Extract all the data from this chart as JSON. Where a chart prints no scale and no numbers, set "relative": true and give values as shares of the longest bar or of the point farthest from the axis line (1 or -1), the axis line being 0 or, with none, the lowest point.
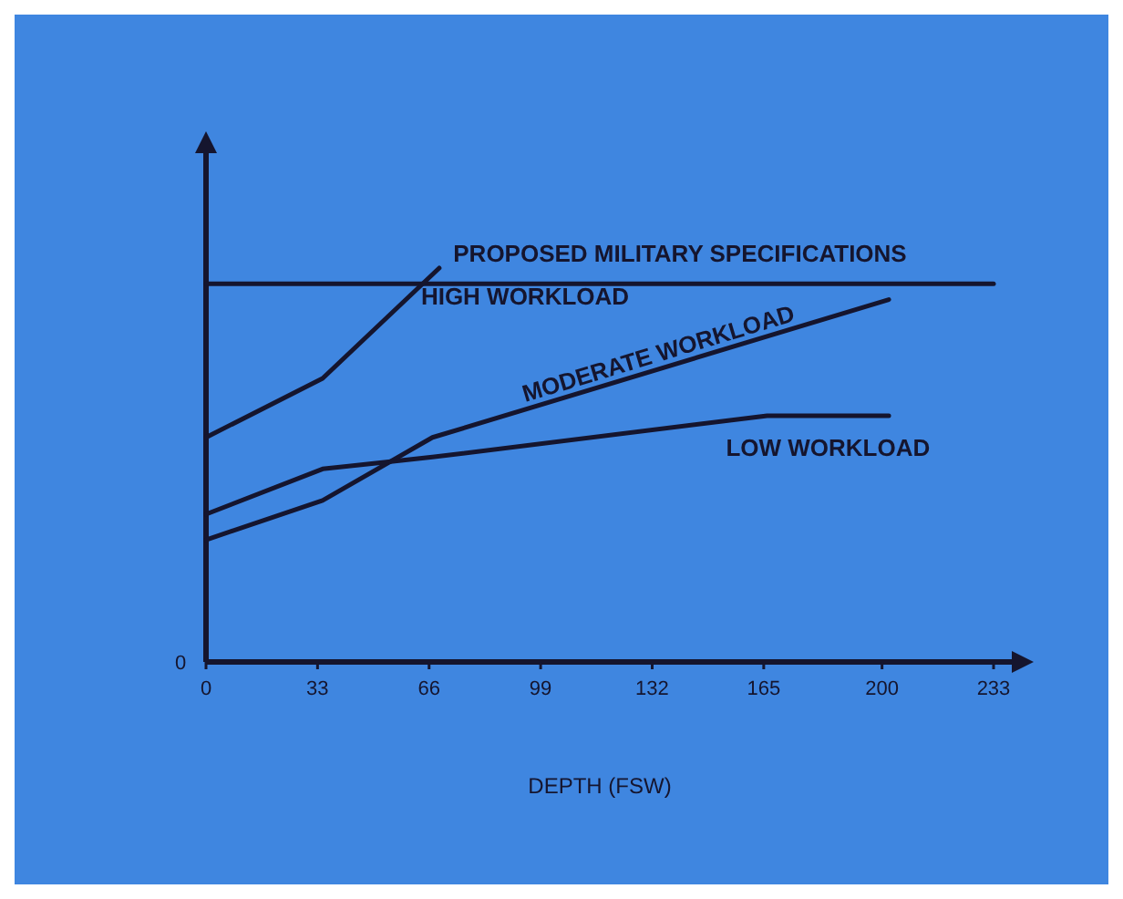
{
  "chart_data": {
    "type": "line",
    "relative": true,
    "xlabel": "DEPTH (FSW)",
    "xlim": [
      0,
      233
    ],
    "xticks": [
      0,
      33,
      66,
      99,
      132,
      165,
      200,
      233
    ],
    "annotations": [
      "0"
    ],
    "line_style": "solid",
    "series": [
      {
        "name": "PROPOSED MILITARY SPECIFICATIONS",
        "color": "#15152e",
        "x": [
          0,
          233
        ],
        "values": [
          0.96,
          0.96
        ]
      },
      {
        "name": "HIGH WORKLOAD",
        "color": "#15152e",
        "x": [
          0,
          34.5,
          69
        ],
        "values": [
          0.57,
          0.72,
          1.0
        ]
      },
      {
        "name": "MODERATE WORKLOAD",
        "color": "#15152e",
        "x": [
          0,
          34.5,
          67,
          202
        ],
        "values": [
          0.31,
          0.41,
          0.57,
          0.92
        ]
      },
      {
        "name": "LOW WORKLOAD",
        "color": "#15152e",
        "x": [
          0,
          34.5,
          67,
          166,
          202
        ],
        "values": [
          0.375,
          0.49,
          0.52,
          0.625,
          0.625
        ]
      }
    ]
  }
}
